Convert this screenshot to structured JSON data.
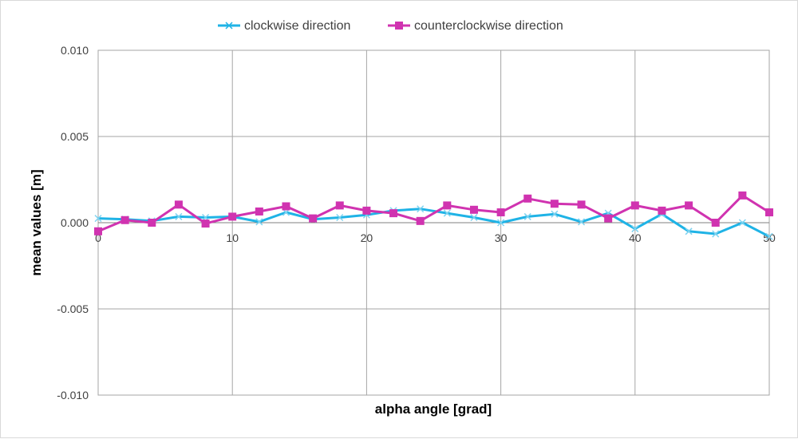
{
  "chart_data": {
    "type": "line",
    "title": "",
    "xlabel": "alpha angle [grad]",
    "ylabel": "mean values [m]",
    "xlim": [
      0,
      50
    ],
    "ylim": [
      -0.01,
      0.01
    ],
    "x_ticks": [
      0,
      10,
      20,
      30,
      40,
      50
    ],
    "y_ticks": [
      0.01,
      0.005,
      0.0,
      -0.005,
      -0.01
    ],
    "x_tick_labels": [
      "0",
      "10",
      "20",
      "30",
      "40",
      "50"
    ],
    "y_tick_labels": [
      "0.010",
      "0.005",
      "0.000",
      "-0.005",
      "-0.010"
    ],
    "grid": true,
    "legend_position": "top",
    "x": [
      0,
      2,
      4,
      6,
      8,
      10,
      12,
      14,
      16,
      18,
      20,
      22,
      24,
      26,
      28,
      30,
      32,
      34,
      36,
      38,
      40,
      42,
      44,
      46,
      48,
      50
    ],
    "series": [
      {
        "name": "clockwise direction",
        "color": "#1FB3E6",
        "marker": "x",
        "values": [
          0.00025,
          0.0002,
          0.0001,
          0.00035,
          0.0003,
          0.00035,
          5e-05,
          0.0006,
          0.0002,
          0.0003,
          0.00045,
          0.0007,
          0.0008,
          0.00055,
          0.0003,
          0.0,
          0.00035,
          0.0005,
          5e-05,
          0.00055,
          -0.00035,
          0.0005,
          -0.0005,
          -0.00065,
          0.0,
          -0.0008
        ]
      },
      {
        "name": "counterclockwise direction",
        "color": "#D033B0",
        "marker": "square",
        "values": [
          -0.0005,
          0.00015,
          0.0,
          0.00105,
          -5e-05,
          0.00035,
          0.00065,
          0.00095,
          0.00025,
          0.001,
          0.0007,
          0.00055,
          0.0001,
          0.001,
          0.00075,
          0.0006,
          0.0014,
          0.0011,
          0.00105,
          0.00025,
          0.001,
          0.0007,
          0.001,
          0.0,
          0.00158,
          0.0006
        ]
      }
    ]
  }
}
